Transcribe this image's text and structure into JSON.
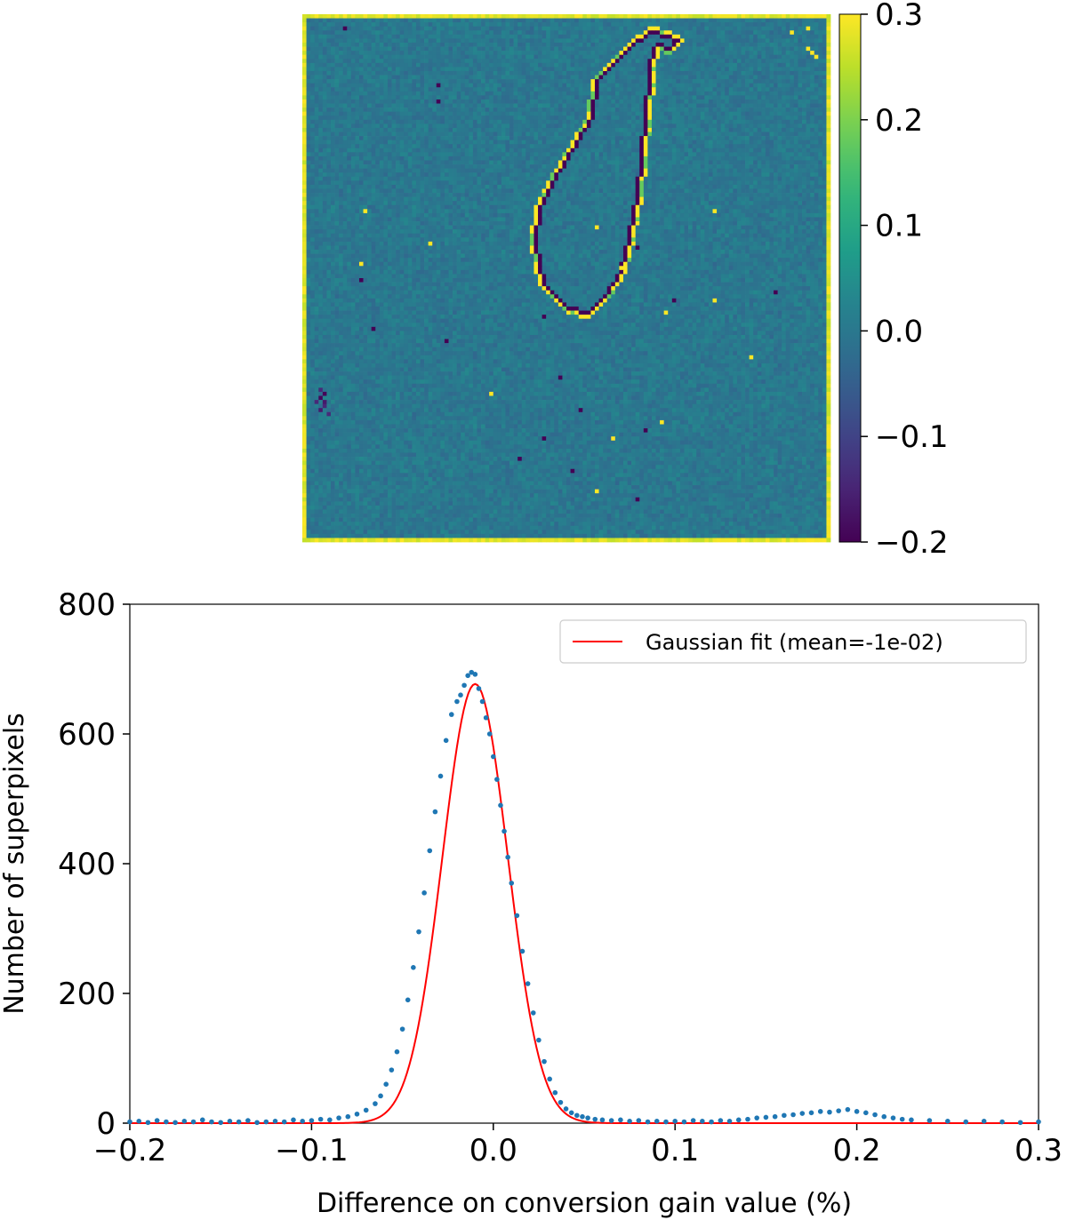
{
  "chart_data": [
    {
      "type": "heatmap",
      "title": "",
      "grid_size": [
        130,
        130
      ],
      "colormap": "viridis",
      "colorbar": {
        "range": [
          -0.2,
          0.3
        ],
        "ticks": [
          0.3,
          0.2,
          0.1,
          0.0,
          -0.1,
          -0.2
        ],
        "tick_labels": [
          "0.3",
          "0.2",
          "0.1",
          "0.0",
          "−0.1",
          "−0.2"
        ]
      },
      "background_value": 0.0,
      "features": {
        "border_value": 0.3,
        "contour_outline_value": 0.3,
        "contour_inner_value": -0.2,
        "hot_spots_value": 0.3,
        "cold_spots_value": -0.2
      }
    },
    {
      "type": "scatter",
      "title": "",
      "xlabel": "Difference on conversion gain value (%)",
      "ylabel": "Number of superpixels",
      "xlim": [
        -0.2,
        0.3
      ],
      "ylim": [
        0,
        800
      ],
      "x_ticks": [
        "−0.2",
        "−0.1",
        "0.0",
        "0.1",
        "0.2",
        "0.3"
      ],
      "y_ticks": [
        "0",
        "200",
        "400",
        "600",
        "800"
      ],
      "legend": {
        "placement": "top-right",
        "label": "Gaussian fit (mean=-1e-02)"
      },
      "gaussian_fit": {
        "mean": -0.01,
        "sigma": 0.018,
        "amplitude": 677,
        "color": "#ff0000"
      },
      "points_color": "#1f77b4",
      "points": [
        [
          -0.2,
          2
        ],
        [
          -0.195,
          3
        ],
        [
          -0.19,
          1
        ],
        [
          -0.185,
          4
        ],
        [
          -0.18,
          2
        ],
        [
          -0.175,
          1
        ],
        [
          -0.17,
          3
        ],
        [
          -0.165,
          2
        ],
        [
          -0.16,
          5
        ],
        [
          -0.155,
          2
        ],
        [
          -0.15,
          1
        ],
        [
          -0.145,
          3
        ],
        [
          -0.14,
          2
        ],
        [
          -0.135,
          4
        ],
        [
          -0.13,
          1
        ],
        [
          -0.125,
          2
        ],
        [
          -0.12,
          3
        ],
        [
          -0.115,
          2
        ],
        [
          -0.11,
          5
        ],
        [
          -0.105,
          3
        ],
        [
          -0.1,
          4
        ],
        [
          -0.095,
          6
        ],
        [
          -0.09,
          5
        ],
        [
          -0.085,
          8
        ],
        [
          -0.08,
          10
        ],
        [
          -0.075,
          14
        ],
        [
          -0.07,
          20
        ],
        [
          -0.065,
          30
        ],
        [
          -0.062,
          42
        ],
        [
          -0.059,
          60
        ],
        [
          -0.056,
          82
        ],
        [
          -0.053,
          110
        ],
        [
          -0.05,
          145
        ],
        [
          -0.047,
          190
        ],
        [
          -0.044,
          240
        ],
        [
          -0.041,
          295
        ],
        [
          -0.038,
          355
        ],
        [
          -0.035,
          420
        ],
        [
          -0.032,
          480
        ],
        [
          -0.029,
          535
        ],
        [
          -0.026,
          590
        ],
        [
          -0.023,
          630
        ],
        [
          -0.02,
          650
        ],
        [
          -0.018,
          660
        ],
        [
          -0.016,
          675
        ],
        [
          -0.014,
          690
        ],
        [
          -0.012,
          695
        ],
        [
          -0.01,
          692
        ],
        [
          -0.008,
          670
        ],
        [
          -0.006,
          650
        ],
        [
          -0.004,
          625
        ],
        [
          -0.002,
          600
        ],
        [
          0.0,
          565
        ],
        [
          0.002,
          530
        ],
        [
          0.004,
          490
        ],
        [
          0.006,
          450
        ],
        [
          0.008,
          410
        ],
        [
          0.01,
          370
        ],
        [
          0.013,
          320
        ],
        [
          0.016,
          265
        ],
        [
          0.019,
          215
        ],
        [
          0.022,
          170
        ],
        [
          0.025,
          128
        ],
        [
          0.028,
          95
        ],
        [
          0.031,
          68
        ],
        [
          0.034,
          47
        ],
        [
          0.037,
          32
        ],
        [
          0.04,
          22
        ],
        [
          0.043,
          16
        ],
        [
          0.046,
          12
        ],
        [
          0.049,
          10
        ],
        [
          0.052,
          8
        ],
        [
          0.056,
          6
        ],
        [
          0.06,
          5
        ],
        [
          0.065,
          4
        ],
        [
          0.07,
          5
        ],
        [
          0.075,
          3
        ],
        [
          0.08,
          4
        ],
        [
          0.085,
          2
        ],
        [
          0.09,
          3
        ],
        [
          0.095,
          2
        ],
        [
          0.1,
          3
        ],
        [
          0.105,
          2
        ],
        [
          0.11,
          4
        ],
        [
          0.115,
          3
        ],
        [
          0.12,
          2
        ],
        [
          0.125,
          4
        ],
        [
          0.13,
          3
        ],
        [
          0.135,
          5
        ],
        [
          0.14,
          6
        ],
        [
          0.145,
          8
        ],
        [
          0.15,
          9
        ],
        [
          0.155,
          10
        ],
        [
          0.16,
          12
        ],
        [
          0.165,
          13
        ],
        [
          0.17,
          15
        ],
        [
          0.175,
          16
        ],
        [
          0.18,
          18
        ],
        [
          0.185,
          17
        ],
        [
          0.19,
          19
        ],
        [
          0.195,
          21
        ],
        [
          0.2,
          18
        ],
        [
          0.205,
          16
        ],
        [
          0.21,
          13
        ],
        [
          0.215,
          10
        ],
        [
          0.22,
          8
        ],
        [
          0.225,
          6
        ],
        [
          0.23,
          5
        ],
        [
          0.24,
          4
        ],
        [
          0.25,
          3
        ],
        [
          0.26,
          2
        ],
        [
          0.27,
          3
        ],
        [
          0.28,
          2
        ],
        [
          0.29,
          1
        ],
        [
          0.3,
          2
        ]
      ]
    }
  ]
}
